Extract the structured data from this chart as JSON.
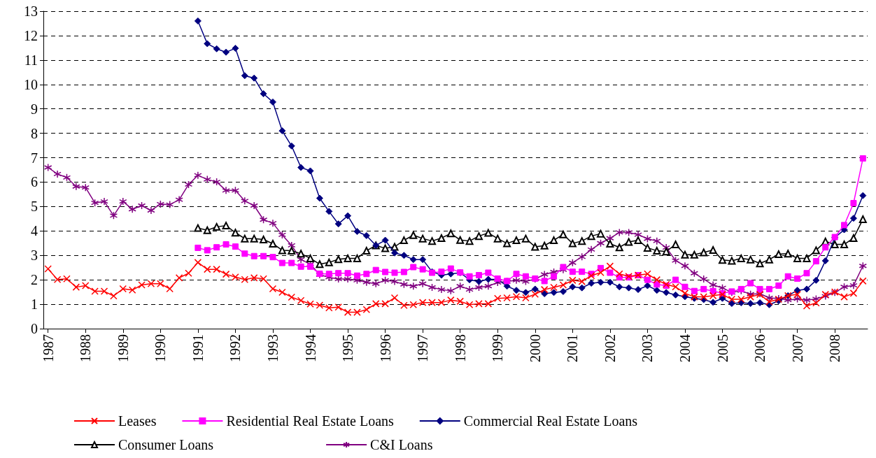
{
  "chart_data": {
    "type": "line",
    "categories": [
      "1987",
      null,
      null,
      null,
      "1988",
      null,
      null,
      null,
      "1989",
      null,
      null,
      null,
      "1990",
      null,
      null,
      null,
      "1991",
      null,
      null,
      null,
      "1992",
      null,
      null,
      null,
      "1993",
      null,
      null,
      null,
      "1994",
      null,
      null,
      null,
      "1995",
      null,
      null,
      null,
      "1996",
      null,
      null,
      null,
      "1997",
      null,
      null,
      null,
      "1998",
      null,
      null,
      null,
      "1999",
      null,
      null,
      null,
      "2000",
      null,
      null,
      null,
      "2001",
      null,
      null,
      null,
      "2002",
      null,
      null,
      null,
      "2003",
      null,
      null,
      null,
      "2004",
      null,
      null,
      null,
      "2005",
      null,
      null,
      null,
      "2006",
      null,
      null,
      null,
      "2007",
      null,
      null,
      null,
      "2008",
      null,
      null,
      null
    ],
    "series": [
      {
        "name": "Leases",
        "color": "#ff0000",
        "marker": "cross",
        "values": [
          2.45,
          2.01,
          2.04,
          1.7,
          1.76,
          1.53,
          1.53,
          1.34,
          1.63,
          1.58,
          1.79,
          1.84,
          1.84,
          1.63,
          2.08,
          2.27,
          2.71,
          2.43,
          2.43,
          2.23,
          2.11,
          2.01,
          2.08,
          2.04,
          1.63,
          1.49,
          1.29,
          1.15,
          1.01,
          0.96,
          0.85,
          0.88,
          0.67,
          0.67,
          0.78,
          1.02,
          1.02,
          1.26,
          0.95,
          0.98,
          1.07,
          1.07,
          1.07,
          1.17,
          1.12,
          0.98,
          1.02,
          1.02,
          1.24,
          1.26,
          1.31,
          1.26,
          1.41,
          1.6,
          1.69,
          1.79,
          1.98,
          1.93,
          2.17,
          2.3,
          2.56,
          2.24,
          2.14,
          2.19,
          2.24,
          2.0,
          1.81,
          1.71,
          1.45,
          1.3,
          1.3,
          1.35,
          1.4,
          1.2,
          1.2,
          1.3,
          1.4,
          1.1,
          1.2,
          1.35,
          1.4,
          0.93,
          1.05,
          1.4,
          1.5,
          1.3,
          1.45,
          1.95
        ]
      },
      {
        "name": "Residential Real Estate Loans",
        "color": "#ff00ff",
        "marker": "square",
        "values": [
          null,
          null,
          null,
          null,
          null,
          null,
          null,
          null,
          null,
          null,
          null,
          null,
          null,
          null,
          null,
          null,
          3.31,
          3.21,
          3.33,
          3.45,
          3.36,
          3.07,
          2.97,
          2.97,
          2.93,
          2.69,
          2.69,
          2.54,
          2.54,
          2.25,
          2.24,
          2.27,
          2.27,
          2.17,
          2.24,
          2.4,
          2.32,
          2.29,
          2.32,
          2.52,
          2.43,
          2.29,
          2.33,
          2.46,
          2.3,
          2.14,
          2.19,
          2.29,
          2.05,
          1.95,
          2.24,
          2.14,
          2.05,
          1.95,
          2.14,
          2.52,
          2.33,
          2.33,
          2.24,
          2.48,
          2.29,
          2.1,
          2.1,
          2.19,
          2.0,
          1.81,
          1.76,
          2.0,
          1.71,
          1.54,
          1.62,
          1.54,
          1.45,
          1.52,
          1.62,
          1.86,
          1.62,
          1.62,
          1.76,
          2.14,
          2.05,
          2.27,
          2.76,
          3.33,
          3.75,
          4.24,
          5.14,
          6.97
        ]
      },
      {
        "name": "Commercial Real Estate Loans",
        "color": "#000080",
        "marker": "diamond",
        "values": [
          null,
          null,
          null,
          null,
          null,
          null,
          null,
          null,
          null,
          null,
          null,
          null,
          null,
          null,
          null,
          null,
          12.6,
          11.67,
          11.46,
          11.32,
          11.48,
          10.36,
          10.26,
          9.62,
          9.28,
          8.1,
          7.48,
          6.6,
          6.46,
          5.34,
          4.8,
          4.29,
          4.62,
          3.98,
          3.81,
          3.41,
          3.62,
          3.1,
          3.0,
          2.83,
          2.83,
          2.33,
          2.19,
          2.24,
          2.29,
          2.0,
          1.93,
          2.02,
          2.02,
          1.74,
          1.57,
          1.48,
          1.62,
          1.43,
          1.48,
          1.52,
          1.71,
          1.67,
          1.86,
          1.9,
          1.9,
          1.71,
          1.67,
          1.6,
          1.76,
          1.57,
          1.48,
          1.38,
          1.31,
          1.24,
          1.19,
          1.08,
          1.24,
          1.03,
          1.06,
          1.03,
          1.06,
          0.98,
          1.14,
          1.35,
          1.57,
          1.62,
          1.98,
          2.78,
          3.73,
          4.05,
          4.52,
          5.45
        ]
      },
      {
        "name": "Consumer Loans",
        "color": "#000000",
        "marker": "triangle",
        "values": [
          null,
          null,
          null,
          null,
          null,
          null,
          null,
          null,
          null,
          null,
          null,
          null,
          null,
          null,
          null,
          null,
          4.12,
          4.03,
          4.17,
          4.22,
          3.93,
          3.69,
          3.69,
          3.65,
          3.48,
          3.21,
          3.19,
          3.07,
          2.88,
          2.64,
          2.71,
          2.84,
          2.88,
          2.88,
          3.19,
          3.41,
          3.29,
          3.35,
          3.62,
          3.83,
          3.69,
          3.59,
          3.71,
          3.9,
          3.63,
          3.59,
          3.79,
          3.92,
          3.69,
          3.49,
          3.62,
          3.69,
          3.35,
          3.4,
          3.62,
          3.86,
          3.49,
          3.59,
          3.79,
          3.89,
          3.48,
          3.33,
          3.55,
          3.62,
          3.31,
          3.19,
          3.16,
          3.45,
          3.03,
          3.03,
          3.12,
          3.22,
          2.81,
          2.78,
          2.88,
          2.83,
          2.67,
          2.83,
          3.05,
          3.07,
          2.88,
          2.88,
          3.21,
          3.57,
          3.45,
          3.45,
          3.71,
          4.48
        ]
      },
      {
        "name": "C&I Loans",
        "color": "#800080",
        "marker": "star",
        "values": [
          6.6,
          6.33,
          6.19,
          5.82,
          5.78,
          5.15,
          5.21,
          4.63,
          5.21,
          4.89,
          5.04,
          4.84,
          5.1,
          5.08,
          5.28,
          5.9,
          6.28,
          6.11,
          6.01,
          5.66,
          5.66,
          5.23,
          5.04,
          4.46,
          4.32,
          3.84,
          3.41,
          2.83,
          2.64,
          2.21,
          2.1,
          2.03,
          2.03,
          1.98,
          1.9,
          1.84,
          1.98,
          1.93,
          1.81,
          1.74,
          1.84,
          1.69,
          1.6,
          1.55,
          1.74,
          1.6,
          1.69,
          1.74,
          1.89,
          1.93,
          1.98,
          1.93,
          2.03,
          2.22,
          2.32,
          2.41,
          2.7,
          2.94,
          3.24,
          3.5,
          3.7,
          3.94,
          3.94,
          3.85,
          3.68,
          3.59,
          3.32,
          2.79,
          2.57,
          2.27,
          2.03,
          1.79,
          1.67,
          1.48,
          1.55,
          1.41,
          1.43,
          1.26,
          1.23,
          1.17,
          1.22,
          1.17,
          1.22,
          1.33,
          1.48,
          1.71,
          1.77,
          2.57
        ]
      }
    ],
    "ylim": [
      0,
      13
    ],
    "yticks": [
      0,
      1,
      2,
      3,
      4,
      5,
      6,
      7,
      8,
      9,
      10,
      11,
      12,
      13
    ],
    "grid": "y",
    "legend": "bottom",
    "line_style": "solid"
  }
}
